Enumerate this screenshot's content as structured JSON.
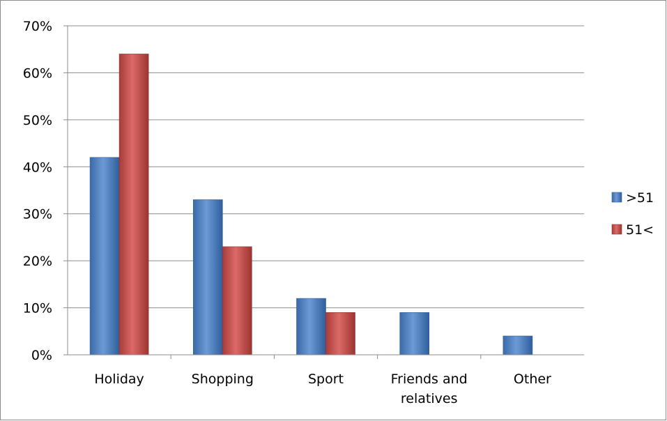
{
  "chart_data": {
    "type": "bar",
    "categories": [
      "Holiday",
      "Shopping",
      "Sport",
      "Friends and relatives",
      "Other"
    ],
    "category_label_lines": [
      [
        "Holiday"
      ],
      [
        "Shopping"
      ],
      [
        "Sport"
      ],
      [
        "Friends and",
        "relatives"
      ],
      [
        "Other"
      ]
    ],
    "series": [
      {
        "name": ">51",
        "values": [
          42,
          33,
          12,
          9,
          4
        ],
        "color": "#4a7ebb"
      },
      {
        "name": "51<",
        "values": [
          64,
          23,
          9,
          null,
          null
        ],
        "color": "#be4b48"
      }
    ],
    "ylim": [
      0,
      70
    ],
    "yticks": [
      0,
      10,
      20,
      30,
      40,
      50,
      60,
      70
    ],
    "ytick_labels": [
      "0%",
      "10%",
      "20%",
      "30%",
      "40%",
      "50%",
      "60%",
      "70%"
    ],
    "title": "",
    "xlabel": "",
    "ylabel": "",
    "grid": true,
    "legend_position": "right"
  }
}
